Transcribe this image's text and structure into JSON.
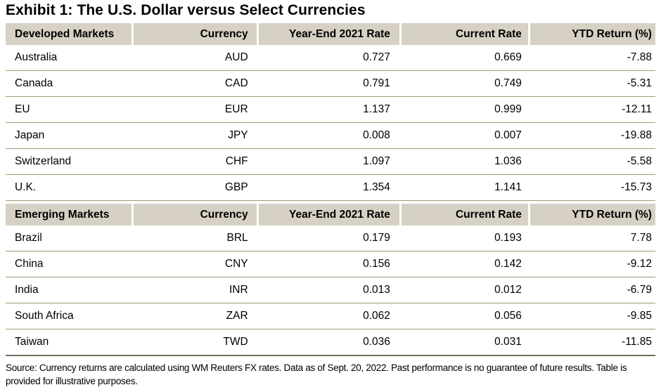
{
  "title": "Exhibit 1: The U.S. Dollar versus Select Currencies",
  "table": {
    "columns": [
      "Currency",
      "Year-End 2021 Rate",
      "Current Rate",
      "YTD Return (%)"
    ],
    "sections": [
      {
        "label": "Developed Markets",
        "rows": [
          [
            "Australia",
            "AUD",
            "0.727",
            "0.669",
            "-7.88"
          ],
          [
            "Canada",
            "CAD",
            "0.791",
            "0.749",
            "-5.31"
          ],
          [
            "EU",
            "EUR",
            "1.137",
            "0.999",
            "-12.11"
          ],
          [
            "Japan",
            "JPY",
            "0.008",
            "0.007",
            "-19.88"
          ],
          [
            "Switzerland",
            "CHF",
            "1.097",
            "1.036",
            "-5.58"
          ],
          [
            "U.K.",
            "GBP",
            "1.354",
            "1.141",
            "-15.73"
          ]
        ]
      },
      {
        "label": "Emerging Markets",
        "rows": [
          [
            "Brazil",
            "BRL",
            "0.179",
            "0.193",
            "7.78"
          ],
          [
            "China",
            "CNY",
            "0.156",
            "0.142",
            "-9.12"
          ],
          [
            "India",
            "INR",
            "0.013",
            "0.012",
            "-6.79"
          ],
          [
            "South Africa",
            "ZAR",
            "0.062",
            "0.056",
            "-9.85"
          ],
          [
            "Taiwan",
            "TWD",
            "0.036",
            "0.031",
            "-11.85"
          ]
        ]
      }
    ]
  },
  "footnote": "Source: Currency returns are calculated using WM Reuters FX rates. Data as of Sept. 20, 2022. Past performance is no guarantee of future results. Table is provided for illustrative purposes.",
  "colors": {
    "header_background": "#d6d1c4",
    "row_divider": "#a39a76",
    "table_bottom_border": "#756e5f",
    "text": "#000000",
    "background": "#ffffff"
  },
  "chart_data": {
    "type": "table",
    "title": "Exhibit 1: The U.S. Dollar versus Select Currencies",
    "columns": [
      "Market",
      "Currency",
      "Year-End 2021 Rate",
      "Current Rate",
      "YTD Return (%)"
    ],
    "sections": [
      {
        "group": "Developed Markets",
        "rows": [
          [
            "Australia",
            "AUD",
            0.727,
            0.669,
            -7.88
          ],
          [
            "Canada",
            "CAD",
            0.791,
            0.749,
            -5.31
          ],
          [
            "EU",
            "EUR",
            1.137,
            0.999,
            -12.11
          ],
          [
            "Japan",
            "JPY",
            0.008,
            0.007,
            -19.88
          ],
          [
            "Switzerland",
            "CHF",
            1.097,
            1.036,
            -5.58
          ],
          [
            "U.K.",
            "GBP",
            1.354,
            1.141,
            -15.73
          ]
        ]
      },
      {
        "group": "Emerging Markets",
        "rows": [
          [
            "Brazil",
            "BRL",
            0.179,
            0.193,
            7.78
          ],
          [
            "China",
            "CNY",
            0.156,
            0.142,
            -9.12
          ],
          [
            "India",
            "INR",
            0.013,
            0.012,
            -6.79
          ],
          [
            "South Africa",
            "ZAR",
            0.062,
            0.056,
            -9.85
          ],
          [
            "Taiwan",
            "TWD",
            0.036,
            0.031,
            -11.85
          ]
        ]
      }
    ],
    "source_note": "Source: Currency returns are calculated using WM Reuters FX rates. Data as of Sept. 20, 2022. Past performance is no guarantee of future results. Table is provided for illustrative purposes."
  }
}
